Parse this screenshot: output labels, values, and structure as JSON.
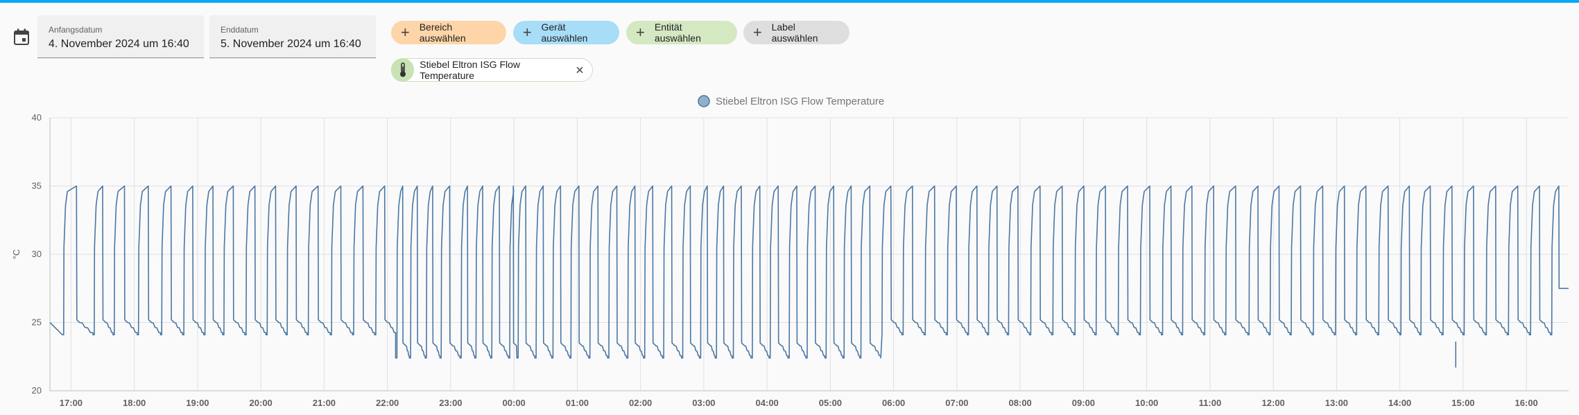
{
  "header": {
    "accent_color": "#03a9f4"
  },
  "date_range": {
    "start_label": "Anfangsdatum",
    "start_value": "4. November 2024 um 16:40",
    "end_label": "Enddatum",
    "end_value": "5. November 2024 um 16:40"
  },
  "target_chips": [
    {
      "label": "Bereich auswählen",
      "color": "#fdd5a8"
    },
    {
      "label": "Gerät auswählen",
      "color": "#a8ddf8"
    },
    {
      "label": "Entität auswählen",
      "color": "#d4e8c2"
    },
    {
      "label": "Label auswählen",
      "color": "#dedede"
    }
  ],
  "selected_entity": {
    "label": "Stiebel Eltron ISG Flow Temperature",
    "icon": "thermometer-icon"
  },
  "chart_data": {
    "type": "line",
    "legend": "Stiebel Eltron ISG Flow Temperature",
    "legend_placement": "top-center",
    "series_color": "#4a77a3",
    "ylabel": "°C",
    "ylim": [
      20,
      40
    ],
    "yticks": [
      20,
      25,
      30,
      35,
      40
    ],
    "grid": true,
    "x_start": "16:40",
    "x_end": "16:40 (+1 day)",
    "xticks": [
      "17:00",
      "18:00",
      "19:00",
      "20:00",
      "21:00",
      "22:00",
      "23:00",
      "00:00",
      "01:00",
      "02:00",
      "03:00",
      "04:00",
      "05:00",
      "06:00",
      "07:00",
      "08:00",
      "09:00",
      "10:00",
      "11:00",
      "12:00",
      "13:00",
      "14:00",
      "15:00",
      "16:00"
    ],
    "cycle_start_times": [
      "16:53",
      "17:22",
      "17:41",
      "18:04",
      "18:26",
      "18:47",
      "19:07",
      "19:25",
      "19:46",
      "20:06",
      "20:25",
      "20:45",
      "21:07",
      "21:28",
      "21:49",
      "22:09",
      "22:22",
      "22:37",
      "22:51",
      "23:10",
      "23:24",
      "23:39",
      "23:56",
      "00:04",
      "00:21",
      "00:37",
      "00:54",
      "01:12",
      "01:30",
      "01:48",
      "02:04",
      "02:22",
      "02:40",
      "02:57",
      "03:12",
      "03:28",
      "03:46",
      "04:03",
      "04:21",
      "04:38",
      "04:56",
      "05:13",
      "05:29",
      "05:49",
      "06:09",
      "06:30",
      "06:51",
      "07:11",
      "07:30",
      "07:49",
      "08:10",
      "08:31",
      "08:52",
      "09:12",
      "09:33",
      "09:54",
      "10:15",
      "10:34",
      "10:55",
      "11:15",
      "11:37",
      "11:57",
      "12:17",
      "12:38",
      "12:59",
      "13:19",
      "13:40",
      "14:01",
      "14:20",
      "14:41",
      "15:01",
      "15:22",
      "15:43",
      "16:04",
      "16:24"
    ],
    "peak_temperature": 35,
    "baseline_before_2200": 25,
    "baseline_2200_to_0540": 23.3,
    "baseline_after_0540": 25,
    "minimum": {
      "x": "14:53",
      "y": 21.7
    },
    "start_value": 25,
    "end_value": 27.5
  }
}
